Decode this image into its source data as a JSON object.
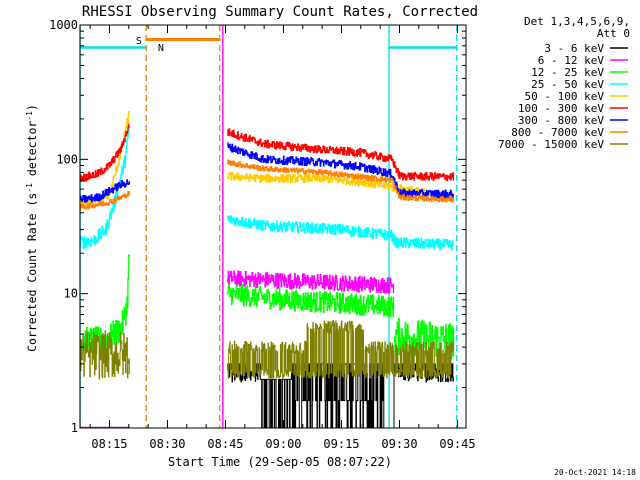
{
  "chart_data": {
    "type": "line",
    "title": "RHESSI Observing Summary Count Rates, Corrected",
    "xlabel": "Start Time (29-Sep-05 08:07:22)",
    "ylabel_main": "Corrected Count Rate (s",
    "ylabel_sup1": "-1",
    "ylabel_mid": " detector",
    "ylabel_sup2": "-1",
    "ylabel_end": ")",
    "yscale": "log",
    "ylim": [
      1,
      1000
    ],
    "xlim_min": [
      7.38,
      107.2
    ],
    "y_ticks": [
      {
        "value": 1,
        "label": "1"
      },
      {
        "value": 10,
        "label": "10"
      },
      {
        "value": 100,
        "label": "100"
      },
      {
        "value": 1000,
        "label": "1000"
      }
    ],
    "x_ticks": [
      {
        "value": 15,
        "label": "08:15"
      },
      {
        "value": 30,
        "label": "08:30"
      },
      {
        "value": 45,
        "label": "08:45"
      },
      {
        "value": 60,
        "label": "09:00"
      },
      {
        "value": 75,
        "label": "09:15"
      },
      {
        "value": 90,
        "label": "09:30"
      },
      {
        "value": 105,
        "label": "09:45"
      }
    ],
    "legend_header": [
      "Det 1,3,4,5,6,9,",
      "Att 0"
    ],
    "legend_position": "top-right",
    "timestamp": "20-Oct-2021 14:18",
    "data_gap": [
      20.5,
      44.8
    ],
    "markers": [
      {
        "label": "S",
        "x": 25.2,
        "color": "#ff8000"
      },
      {
        "label": "N",
        "x": 26.5,
        "color": "#00e0e0"
      }
    ],
    "bars": [
      {
        "name": "night",
        "color": "#00e0e0",
        "y": 680,
        "ranges": [
          [
            7.4,
            24.5
          ],
          [
            87.3,
            104.8
          ]
        ]
      },
      {
        "name": "saa",
        "color": "#ff8000",
        "y": 780,
        "ranges": [
          [
            24.5,
            43.5
          ]
        ]
      }
    ],
    "vlines": [
      {
        "x": 7.4,
        "color": "#00e0e0",
        "style": "solid"
      },
      {
        "x": 24.5,
        "color": "#00e0e0",
        "style": "dashed"
      },
      {
        "x": 87.3,
        "color": "#00e0e0",
        "style": "solid"
      },
      {
        "x": 104.8,
        "color": "#00e0e0",
        "style": "dashed"
      },
      {
        "x": 24.5,
        "color": "#ff8000",
        "style": "dashed"
      },
      {
        "x": 43.5,
        "color": "#ff8000",
        "style": "dashed"
      },
      {
        "x": 44.3,
        "color": "#ff00ff",
        "style": "solid"
      }
    ],
    "series": [
      {
        "name": "3 - 6 keV",
        "color": "#000000",
        "pre": {
          "type": "flat",
          "y": 1.01,
          "x": [
            7.4,
            20.2
          ]
        },
        "post": {
          "type": "black",
          "x": [
            45.5,
            104.0
          ]
        }
      },
      {
        "name": "6 - 12 keV",
        "color": "#ff00ff",
        "pre": {
          "type": "flat",
          "y": 1.01,
          "x": [
            7.4,
            20.2
          ]
        },
        "post": {
          "type": "pts",
          "pts": [
            [
              45.5,
              13
            ],
            [
              60,
              12.5
            ],
            [
              75,
              12
            ],
            [
              88.5,
              11.5
            ]
          ],
          "noise": 0.06
        }
      },
      {
        "name": "12 - 25 keV",
        "color": "#00ff00",
        "pre": {
          "type": "pts",
          "pts": [
            [
              7.4,
              4.5
            ],
            [
              14,
              4.5
            ],
            [
              18,
              5.5
            ],
            [
              19.5,
              8
            ],
            [
              20.2,
              22
            ]
          ],
          "noise": 0.1
        },
        "post": {
          "type": "pts",
          "pts": [
            [
              45.5,
              10
            ],
            [
              60,
              9
            ],
            [
              75,
              8.5
            ],
            [
              88.5,
              8
            ]
          ],
          "noise": 0.08
        },
        "tail": {
          "type": "pts",
          "pts": [
            [
              88.6,
              4.8
            ],
            [
              104.0,
              4.5
            ]
          ],
          "noise": 0.14
        }
      },
      {
        "name": "25 - 50 keV",
        "color": "#00ffff",
        "pre": {
          "type": "pts",
          "pts": [
            [
              7.4,
              24
            ],
            [
              11,
              25
            ],
            [
              14,
              30
            ],
            [
              16.5,
              50
            ],
            [
              19,
              100
            ],
            [
              20.2,
              175
            ]
          ],
          "noise": 0.05
        },
        "post": {
          "type": "pts",
          "pts": [
            [
              45.5,
              36
            ],
            [
              55,
              32
            ],
            [
              75,
              30
            ],
            [
              88,
              27
            ],
            [
              89,
              24
            ],
            [
              104,
              23
            ]
          ],
          "noise": 0.04
        }
      },
      {
        "name": "50 - 100 keV",
        "color": "#ffcc00",
        "pre": {
          "type": "pts",
          "pts": [
            [
              7.4,
              46
            ],
            [
              12,
              48
            ],
            [
              15,
              55
            ],
            [
              17.5,
              100
            ],
            [
              20.2,
              230
            ]
          ],
          "noise": 0.03
        },
        "post": {
          "type": "pts",
          "pts": [
            [
              45.5,
              75
            ],
            [
              55,
              72
            ],
            [
              70,
              72
            ],
            [
              80,
              68
            ],
            [
              88,
              62
            ],
            [
              104,
              52
            ]
          ],
          "noise": 0.03
        }
      },
      {
        "name": "100 - 300 keV",
        "color": "#ff0000",
        "pre": {
          "type": "pts",
          "pts": [
            [
              7.4,
              72
            ],
            [
              12,
              78
            ],
            [
              15,
              90
            ],
            [
              18,
              120
            ],
            [
              20.2,
              185
            ]
          ],
          "noise": 0.03
        },
        "post": {
          "type": "pts",
          "pts": [
            [
              45.5,
              160
            ],
            [
              55,
              130
            ],
            [
              70,
              118
            ],
            [
              80,
              112
            ],
            [
              88,
              100
            ],
            [
              90,
              75
            ],
            [
              104,
              74
            ]
          ],
          "noise": 0.03
        }
      },
      {
        "name": "300 - 800 keV",
        "color": "#0000ff",
        "pre": {
          "type": "pts",
          "pts": [
            [
              7.4,
              50
            ],
            [
              12,
              52
            ],
            [
              15,
              58
            ],
            [
              18,
              65
            ],
            [
              20.2,
              68
            ]
          ],
          "noise": 0.03
        },
        "post": {
          "type": "pts",
          "pts": [
            [
              45.5,
              125
            ],
            [
              55,
              100
            ],
            [
              70,
              95
            ],
            [
              80,
              88
            ],
            [
              88,
              78
            ],
            [
              90,
              56
            ],
            [
              104,
              55
            ]
          ],
          "noise": 0.03
        }
      },
      {
        "name": "800 - 7000 keV",
        "color": "#ff8000",
        "pre": {
          "type": "pts",
          "pts": [
            [
              7.4,
              44
            ],
            [
              12,
              46
            ],
            [
              15,
              48
            ],
            [
              18,
              52
            ],
            [
              20.2,
              56
            ]
          ],
          "noise": 0.02
        },
        "post": {
          "type": "pts",
          "pts": [
            [
              45.5,
              95
            ],
            [
              55,
              85
            ],
            [
              70,
              80
            ],
            [
              80,
              74
            ],
            [
              88,
              70
            ],
            [
              90,
              52
            ],
            [
              104,
              50
            ]
          ],
          "noise": 0.02
        }
      },
      {
        "name": "7000 - 15000 keV",
        "color": "#808000",
        "pre": {
          "type": "flat",
          "y": 3.5,
          "x": [
            7.4,
            20.2
          ],
          "noise": 0.18
        },
        "post": {
          "type": "olive",
          "x": [
            45.5,
            104.0
          ]
        }
      }
    ]
  }
}
